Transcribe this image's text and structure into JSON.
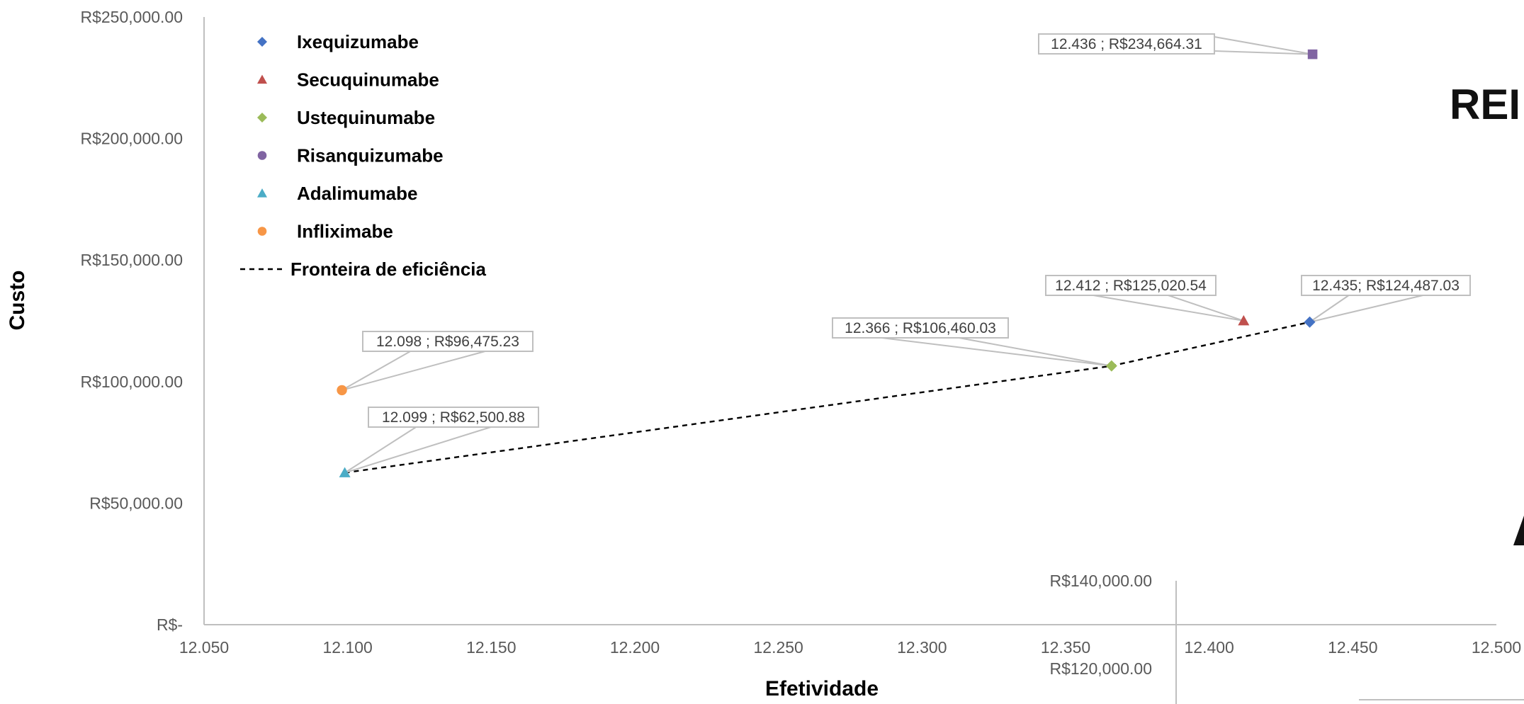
{
  "chart_data": {
    "type": "scatter",
    "xlabel": "Efetividade",
    "ylabel": "Custo",
    "xlim": [
      12.05,
      12.5
    ],
    "ylim": [
      0,
      250000
    ],
    "x_ticks": [
      "12.050",
      "12.100",
      "12.150",
      "12.200",
      "12.250",
      "12.300",
      "12.350",
      "12.400",
      "12.450",
      "12.500"
    ],
    "y_ticks": [
      "R$-",
      "R$50,000.00",
      "R$100,000.00",
      "R$150,000.00",
      "R$200,000.00",
      "R$250,000.00"
    ],
    "grid": false,
    "legend_position": "top-left",
    "series": [
      {
        "name": "Ixequizumabe",
        "marker": "diamond",
        "color": "#4472C4",
        "x": 12.435,
        "y": 124487.03,
        "label": "12.435; R$124,487.03"
      },
      {
        "name": "Secuquinumabe",
        "marker": "triangle",
        "color": "#C0504D",
        "x": 12.412,
        "y": 125020.54,
        "label": "12.412 ; R$125,020.54"
      },
      {
        "name": "Ustequinumabe",
        "marker": "diamond",
        "color": "#9BBB59",
        "x": 12.366,
        "y": 106460.03,
        "label": "12.366 ; R$106,460.03"
      },
      {
        "name": "Risanquizumabe",
        "marker": "circle",
        "legend_marker": "circle",
        "plot_marker": "square",
        "color": "#8064A2",
        "x": 12.436,
        "y": 234664.31,
        "label": "12.436 ; R$234,664.31"
      },
      {
        "name": "Adalimumabe",
        "marker": "triangle",
        "color": "#4BACC6",
        "x": 12.099,
        "y": 62500.88,
        "label": "12.099 ; R$62,500.88"
      },
      {
        "name": "Infliximabe",
        "marker": "circle",
        "color": "#F79646",
        "x": 12.098,
        "y": 96475.23,
        "label": "12.098 ; R$96,475.23"
      }
    ],
    "frontier": {
      "name": "Fronteira de eficiência",
      "style": "dashed",
      "color": "#000000",
      "points": [
        [
          12.099,
          62500.88
        ],
        [
          12.366,
          106460.03
        ],
        [
          12.435,
          124487.03
        ]
      ]
    }
  },
  "overlay": {
    "inset_ticks": [
      "R$140,000.00",
      "R$120,000.00"
    ],
    "partial_heading": "REI"
  }
}
